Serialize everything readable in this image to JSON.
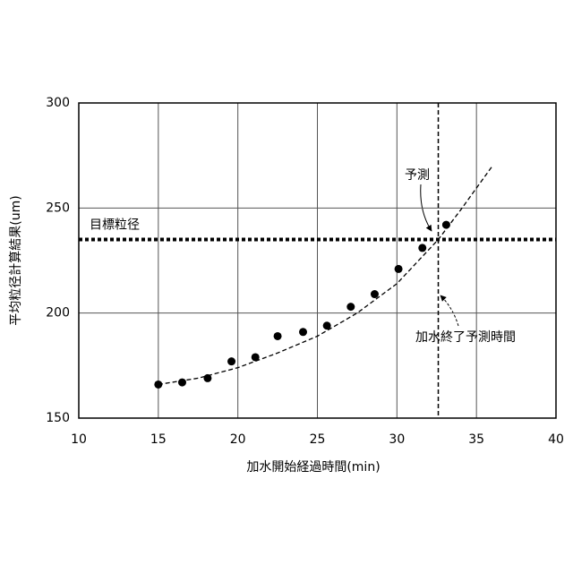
{
  "chart_data": {
    "type": "scatter",
    "x_label": "加水開始経過時間(min)",
    "y_label": "平均粒径計算結果(um)",
    "xlim": [
      10,
      40
    ],
    "ylim": [
      150,
      300
    ],
    "xticks": [
      10,
      15,
      20,
      25,
      30,
      35,
      40
    ],
    "yticks": [
      150,
      200,
      250,
      300
    ],
    "grid": true,
    "series": [
      {
        "color": "#000000",
        "x": [
          15.0,
          16.5,
          18.1,
          19.6,
          21.1,
          22.5,
          24.1,
          25.6,
          27.1,
          28.6,
          30.1,
          31.6,
          33.1
        ],
        "values": [
          166,
          167,
          169,
          177,
          179,
          189,
          191,
          194,
          203,
          209,
          221,
          231,
          242
        ]
      }
    ],
    "fit_line": {
      "x": [
        15,
        17.5,
        20,
        22.5,
        25,
        27.5,
        30,
        32.6,
        34,
        36
      ],
      "values": [
        166,
        169,
        174,
        181,
        189,
        200,
        214,
        235,
        249,
        270
      ]
    },
    "target_line": {
      "label": "目標粒径",
      "value": 235
    },
    "end_time_line": {
      "label": "加水終了予測時間",
      "value": 32.6
    },
    "prediction_label": "予測"
  }
}
